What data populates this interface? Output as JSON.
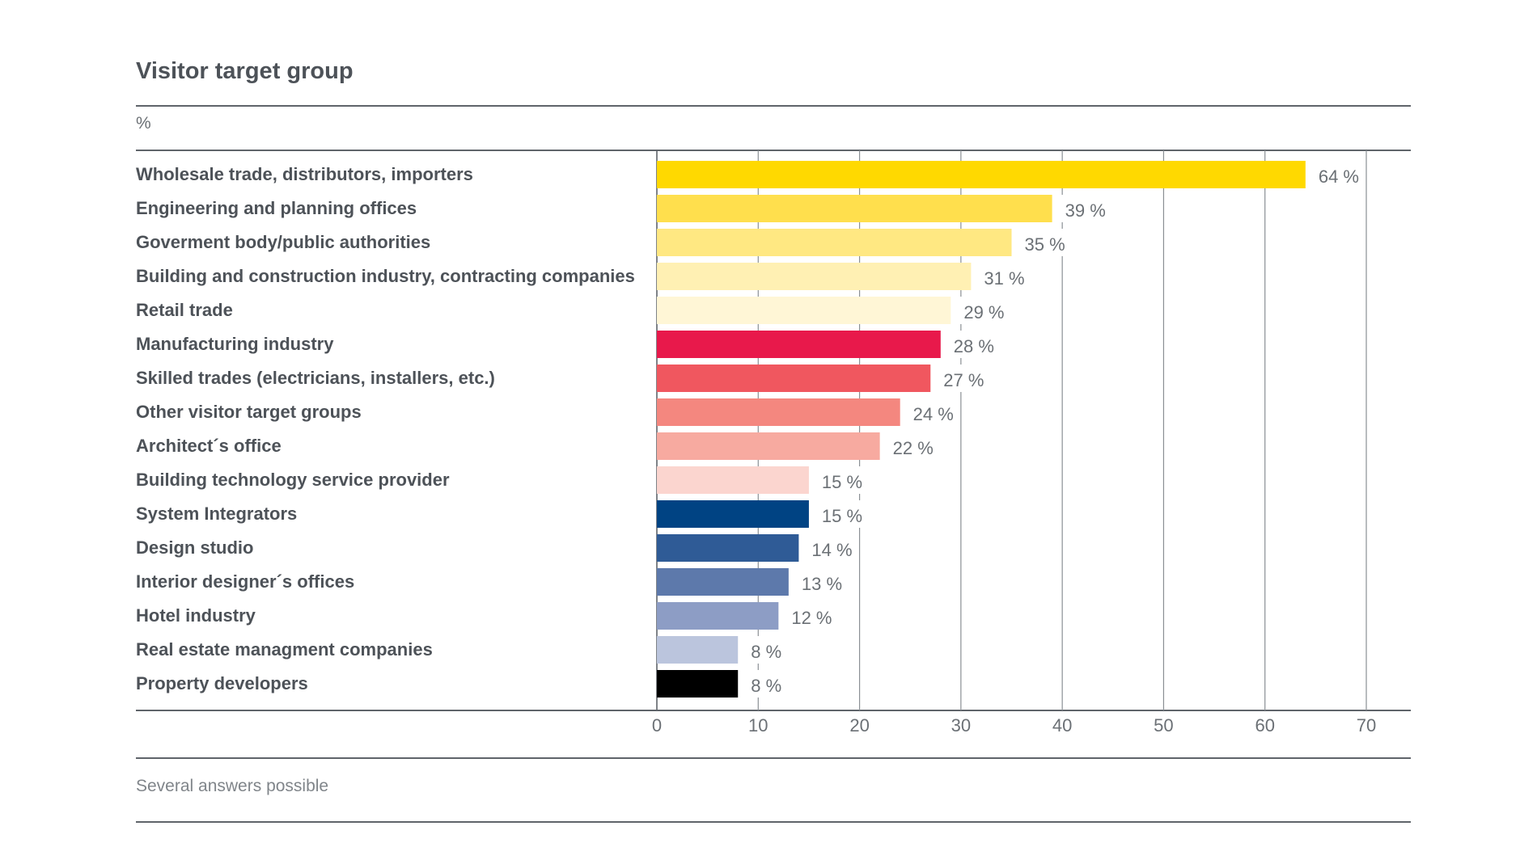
{
  "chart_data": {
    "type": "bar",
    "orientation": "horizontal",
    "title": "Visitor target group",
    "unit_label": "%",
    "footnote": "Several answers possible",
    "categories": [
      "Wholesale trade, distributors, importers",
      "Engineering and planning offices",
      "Goverment body/public authorities",
      "Building and construction industry, contracting companies",
      "Retail trade",
      "Manufacturing industry",
      "Skilled trades (electricians, installers, etc.)",
      "Other visitor target groups",
      "Architect´s office",
      "Building technology service provider",
      "System Integrators",
      "Design studio",
      "Interior designer´s offices",
      "Hotel industry",
      "Real estate managment companies",
      "Property developers"
    ],
    "values": [
      64,
      39,
      35,
      31,
      29,
      28,
      27,
      24,
      22,
      15,
      15,
      14,
      13,
      12,
      8,
      8
    ],
    "value_labels": [
      "64 %",
      "39 %",
      "35 %",
      "31 %",
      "29 %",
      "28 %",
      "27 %",
      "24 %",
      "22 %",
      "15 %",
      "15 %",
      "14 %",
      "13 %",
      "12 %",
      "8 %",
      "8 %"
    ],
    "colors": [
      "#ffd900",
      "#ffdf4d",
      "#ffe882",
      "#fff0b3",
      "#fff6d6",
      "#e8194b",
      "#f0575f",
      "#f4877f",
      "#f7aaa0",
      "#fbd5cf",
      "#004383",
      "#2f5b96",
      "#5d79ab",
      "#8d9dc5",
      "#bbc5dd",
      "#000000"
    ],
    "xlim": [
      0,
      70
    ],
    "xticks": [
      "0",
      "10",
      "20",
      "30",
      "40",
      "50",
      "60",
      "70"
    ],
    "grid": true
  }
}
